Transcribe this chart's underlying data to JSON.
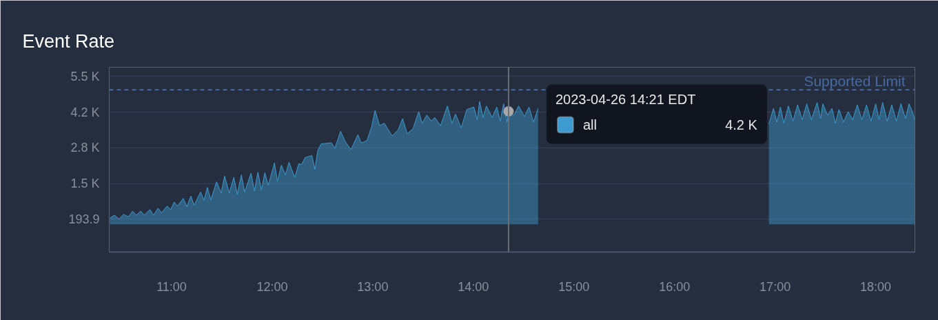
{
  "chart_data": {
    "type": "area",
    "title": "Event Rate",
    "x": [
      10.386,
      10.431,
      10.477,
      10.523,
      10.569,
      10.614,
      10.648,
      10.694,
      10.728,
      10.785,
      10.82,
      10.865,
      10.9,
      10.957,
      10.991,
      11.025,
      11.059,
      11.116,
      11.151,
      11.192,
      11.224,
      11.288,
      11.322,
      11.356,
      11.39,
      11.447,
      11.493,
      11.527,
      11.573,
      11.619,
      11.653,
      11.694,
      11.726,
      11.79,
      11.824,
      11.858,
      11.893,
      11.927,
      11.961,
      12.023,
      12.052,
      12.091,
      12.132,
      12.167,
      12.224,
      12.265,
      12.292,
      12.327,
      12.395,
      12.425,
      12.452,
      12.486,
      12.589,
      12.623,
      12.68,
      12.726,
      12.783,
      12.852,
      12.886,
      12.943,
      12.989,
      13.023,
      13.068,
      13.114,
      13.148,
      13.194,
      13.251,
      13.297,
      13.342,
      13.4,
      13.457,
      13.491,
      13.537,
      13.582,
      13.616,
      13.674,
      13.742,
      13.788,
      13.822,
      13.879,
      13.936,
      14.005,
      14.039,
      14.062,
      14.096,
      14.13,
      14.187,
      14.233,
      14.267,
      14.301,
      14.336,
      14.35,
      14.404,
      14.45,
      14.507,
      14.553,
      14.598,
      14.644,
      14.689,
      14.724,
      15.8,
      16.938,
      16.984,
      17.018,
      17.053,
      17.087,
      17.132,
      17.178,
      17.224,
      17.269,
      17.315,
      17.361,
      17.418,
      17.452,
      17.475,
      17.521,
      17.566,
      17.6,
      17.635,
      17.68,
      17.726,
      17.772,
      17.817,
      17.863,
      17.909,
      17.954,
      18.0,
      18.034,
      18.069,
      18.114,
      18.16,
      18.206,
      18.251,
      18.297,
      18.331,
      18.365,
      18.388
    ],
    "series": [
      {
        "name": "all",
        "color": "#3d9bd0",
        "values": [
          230,
          340,
          200,
          370,
          280,
          490,
          340,
          490,
          340,
          550,
          340,
          600,
          430,
          680,
          550,
          830,
          680,
          970,
          660,
          1050,
          710,
          1200,
          900,
          1370,
          910,
          1580,
          1170,
          1790,
          1170,
          1750,
          1110,
          1840,
          1200,
          1900,
          1240,
          1940,
          1280,
          1920,
          1450,
          2280,
          1600,
          2200,
          1840,
          2310,
          1750,
          2260,
          2220,
          2480,
          2560,
          2050,
          2730,
          2990,
          3030,
          2820,
          3460,
          3080,
          2780,
          3330,
          3020,
          3120,
          3630,
          4230,
          3670,
          3760,
          3550,
          3290,
          3500,
          3930,
          3370,
          3550,
          4190,
          3760,
          4060,
          3840,
          3970,
          3670,
          4400,
          3760,
          4100,
          3590,
          4270,
          4360,
          3890,
          4570,
          3970,
          4400,
          3970,
          4360,
          3840,
          4480,
          3800,
          4200,
          4060,
          4400,
          4010,
          4360,
          3800,
          4310,
          null,
          null,
          null,
          3720,
          4310,
          3800,
          4360,
          3760,
          4400,
          3840,
          4440,
          3890,
          4480,
          3890,
          4530,
          3930,
          4480,
          4060,
          4310,
          3760,
          4270,
          3800,
          4190,
          3890,
          4440,
          3890,
          4440,
          3840,
          4480,
          3890,
          4530,
          3840,
          4440,
          3840,
          4480,
          3930,
          4480,
          4190,
          3890
        ]
      }
    ],
    "xlim": [
      10.38,
      18.39
    ],
    "xticks": [
      {
        "value": 11,
        "label": "11:00"
      },
      {
        "value": 12,
        "label": "12:00"
      },
      {
        "value": 13,
        "label": "13:00"
      },
      {
        "value": 14,
        "label": "14:00"
      },
      {
        "value": 15,
        "label": "15:00"
      },
      {
        "value": 16,
        "label": "16:00"
      },
      {
        "value": 17,
        "label": "17:00"
      },
      {
        "value": 18,
        "label": "18:00"
      }
    ],
    "ylim": [
      -1030,
      5840
    ],
    "yticks": [
      193.9,
      {
        "value": 1519,
        "label": "1.5 K"
      },
      {
        "value": 2844,
        "label": "2.8 K"
      },
      {
        "value": 4169,
        "label": "4.2 K"
      },
      {
        "value": 5494,
        "label": "5.5 K"
      }
    ],
    "grid": "y",
    "ref_lines": [
      {
        "axis": "y",
        "value": 5000,
        "label": "Supported Limit",
        "color": "#4a6aa3",
        "line_style": "dashed"
      },
      {
        "axis": "x",
        "value": 14.35,
        "label": null,
        "color": "#6b6f78",
        "line_style": "solid"
      }
    ],
    "annotations": [
      "2023-04-26 14:21 EDT",
      "4.2 K"
    ]
  }
}
